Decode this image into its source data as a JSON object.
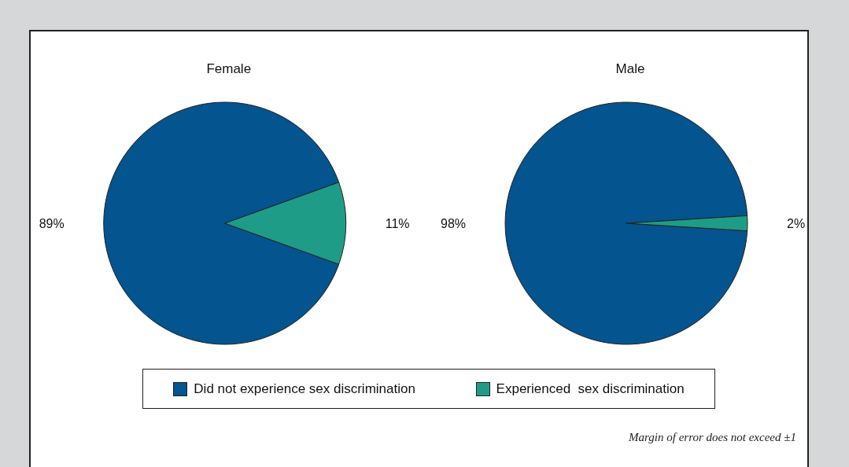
{
  "chart_data": {
    "type": "pie",
    "categories": [
      "Did not experience sex discrimination",
      "Experienced  sex discrimination"
    ],
    "colors": [
      "#03548f",
      "#1e9c87"
    ],
    "series": [
      {
        "name": "Female",
        "values": [
          89,
          11
        ],
        "value_labels": [
          "89%",
          "11%"
        ]
      },
      {
        "name": "Male",
        "values": [
          98,
          2
        ],
        "value_labels": [
          "98%",
          "2%"
        ]
      }
    ],
    "legend": "bottom",
    "annotations": [
      "Margin of error does not exceed ±1"
    ]
  }
}
